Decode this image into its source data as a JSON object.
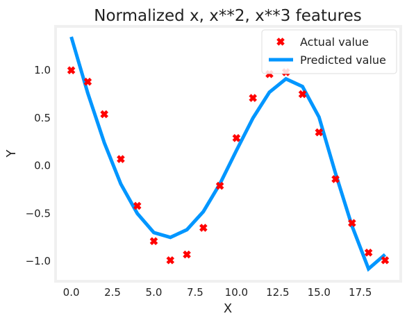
{
  "chart_data": {
    "type": "line",
    "title": "Normalized x, x**2, x**3 features",
    "xlabel": "X",
    "ylabel": "Y",
    "xlim": [
      -0.95,
      19.95
    ],
    "ylim": [
      -1.21,
      1.46
    ],
    "grid": false,
    "legend_position": "top-right",
    "x_ticks": [
      0.0,
      2.5,
      5.0,
      7.5,
      10.0,
      12.5,
      15.0,
      17.5
    ],
    "x_tick_labels": [
      "0.0",
      "2.5",
      "5.0",
      "7.5",
      "10.0",
      "12.5",
      "15.0",
      "17.5"
    ],
    "y_ticks": [
      -1.0,
      -0.5,
      0.0,
      0.5,
      1.0
    ],
    "y_tick_labels": [
      "−1.0",
      "−0.5",
      "0.0",
      "0.5",
      "1.0"
    ],
    "series": [
      {
        "name": "Actual value",
        "kind": "scatter",
        "marker": "x",
        "color": "#ff0000",
        "x": [
          0,
          1,
          2,
          3,
          4,
          5,
          6,
          7,
          8,
          9,
          10,
          11,
          12,
          13,
          14,
          15,
          16,
          17,
          18,
          19
        ],
        "y": [
          1.0,
          0.88,
          0.54,
          0.07,
          -0.42,
          -0.79,
          -0.99,
          -0.93,
          -0.65,
          -0.21,
          0.29,
          0.71,
          0.96,
          0.98,
          0.75,
          0.35,
          -0.14,
          -0.6,
          -0.91,
          -0.99
        ]
      },
      {
        "name": "Predicted value",
        "kind": "line",
        "color": "#0096ff",
        "x": [
          0,
          1,
          2,
          3,
          4,
          5,
          6,
          7,
          8,
          9,
          10,
          11,
          12,
          13,
          14,
          15,
          16,
          17,
          18,
          19
        ],
        "y": [
          1.35,
          0.76,
          0.24,
          -0.19,
          -0.5,
          -0.7,
          -0.75,
          -0.67,
          -0.48,
          -0.19,
          0.16,
          0.5,
          0.77,
          0.91,
          0.83,
          0.51,
          -0.08,
          -0.63,
          -1.08,
          -0.93
        ]
      }
    ]
  }
}
